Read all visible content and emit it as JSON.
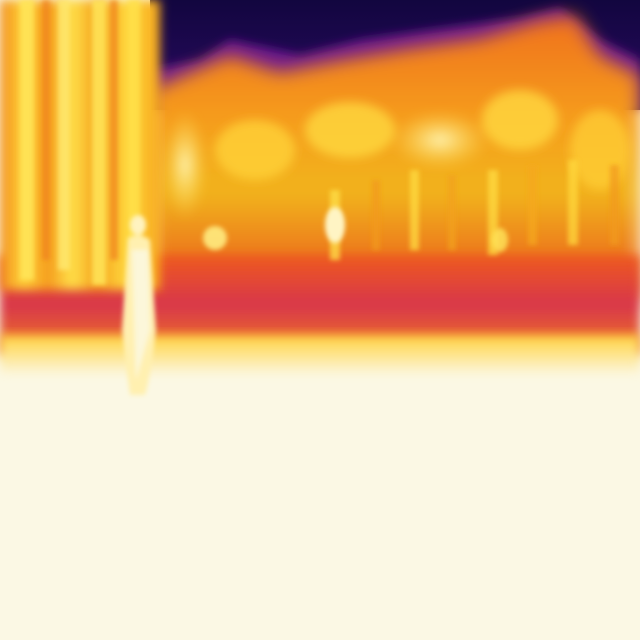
{
  "image": {
    "kind": "thermal-photograph",
    "palette": "iron",
    "colors": {
      "cold": "#12063f",
      "cool": "#5a0c8c",
      "warm": "#e8501c",
      "hot": "#f7a61a",
      "hotter": "#ffe14a",
      "hottest": "#fcf7df"
    }
  }
}
